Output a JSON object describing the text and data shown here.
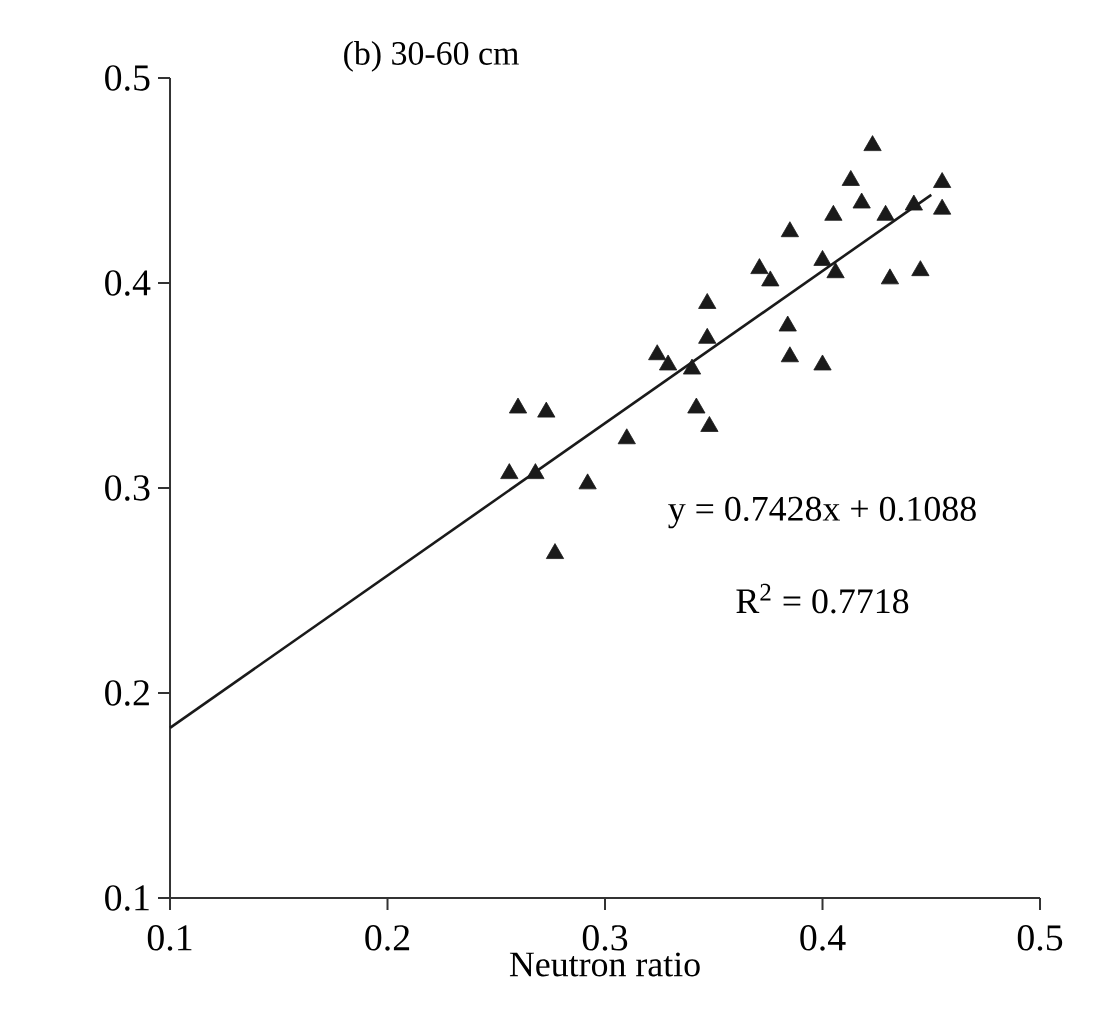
{
  "chart_data": {
    "type": "scatter",
    "title": "(b) 30-60 cm",
    "xlabel": "Neutron ratio",
    "xlim": [
      0.1,
      0.5
    ],
    "ylim": [
      0.1,
      0.5
    ],
    "xticks": [
      0.1,
      0.2,
      0.3,
      0.4,
      0.5
    ],
    "yticks": [
      0.1,
      0.2,
      0.3,
      0.4,
      0.5
    ],
    "marker": "triangle",
    "series": [
      {
        "color": "#1a1a1a",
        "x": [
          0.256,
          0.268,
          0.26,
          0.273,
          0.277,
          0.292,
          0.31,
          0.324,
          0.329,
          0.34,
          0.347,
          0.347,
          0.342,
          0.348,
          0.371,
          0.376,
          0.385,
          0.384,
          0.385,
          0.4,
          0.4,
          0.406,
          0.405,
          0.413,
          0.418,
          0.423,
          0.429,
          0.431,
          0.445,
          0.442,
          0.455,
          0.455
        ],
        "values": [
          0.307,
          0.307,
          0.339,
          0.337,
          0.268,
          0.302,
          0.324,
          0.365,
          0.36,
          0.358,
          0.39,
          0.373,
          0.339,
          0.33,
          0.407,
          0.401,
          0.425,
          0.379,
          0.364,
          0.36,
          0.411,
          0.405,
          0.433,
          0.45,
          0.439,
          0.467,
          0.433,
          0.402,
          0.406,
          0.438,
          0.449,
          0.436
        ]
      },
      {
        "type": "line",
        "marker": "none",
        "color": "#1a1a1a",
        "x": [
          0.1,
          0.45
        ],
        "values": [
          0.183,
          0.443
        ]
      }
    ],
    "annotations": [
      "y = 0.7428x + 0.1088",
      "R$^{2}$ = 0.7718"
    ]
  }
}
